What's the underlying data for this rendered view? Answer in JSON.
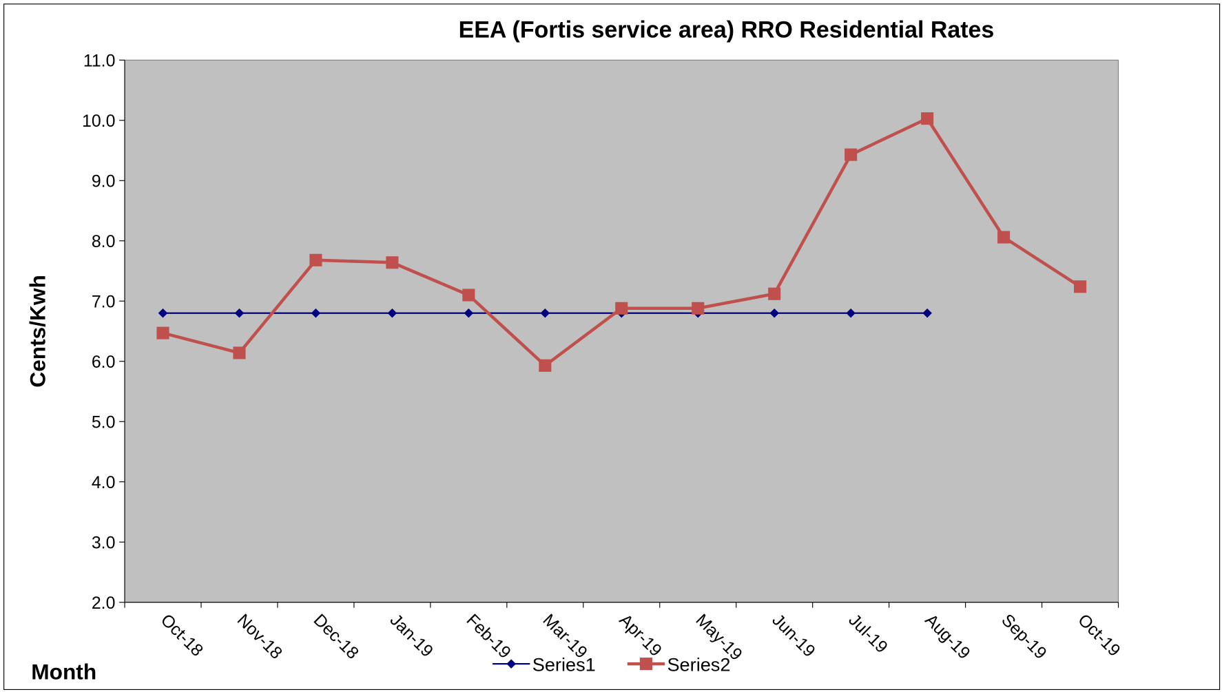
{
  "chart_data": {
    "type": "line",
    "title": "EEA (Fortis service area) RRO Residential Rates",
    "x_label": "Month",
    "y_label": "Cents/Kwh",
    "categories": [
      "Oct-18",
      "Nov-18",
      "Dec-18",
      "Jan-19",
      "Feb-19",
      "Mar-19",
      "Apr-19",
      "May-19",
      "Jun-19",
      "Jul-19",
      "Aug-19",
      "Sep-19",
      "Oct-19"
    ],
    "series": [
      {
        "name": "Series1",
        "color": "#000080",
        "marker": "diamond",
        "values": [
          6.8,
          6.8,
          6.8,
          6.8,
          6.8,
          6.8,
          6.8,
          6.8,
          6.8,
          6.8,
          6.8,
          null,
          null
        ]
      },
      {
        "name": "Series2",
        "color": "#c0504d",
        "marker": "square",
        "values": [
          6.47,
          6.14,
          7.68,
          7.64,
          7.1,
          5.93,
          6.88,
          6.88,
          7.12,
          9.43,
          10.03,
          8.06,
          7.24
        ]
      }
    ],
    "ylim": [
      2,
      11
    ],
    "yticks": [
      {
        "value": 2,
        "label": "2.0"
      },
      {
        "value": 3,
        "label": "3.0"
      },
      {
        "value": 4,
        "label": "4.0"
      },
      {
        "value": 5,
        "label": "5.0"
      },
      {
        "value": 6,
        "label": "6.0"
      },
      {
        "value": 7,
        "label": "7.0"
      },
      {
        "value": 8,
        "label": "8.0"
      },
      {
        "value": 9,
        "label": "9.0"
      },
      {
        "value": 10,
        "label": "10.0"
      },
      {
        "value": 11,
        "label": "11.0"
      }
    ],
    "grid": false,
    "legend": "bottom",
    "plot_background": "#c0c0c0"
  }
}
